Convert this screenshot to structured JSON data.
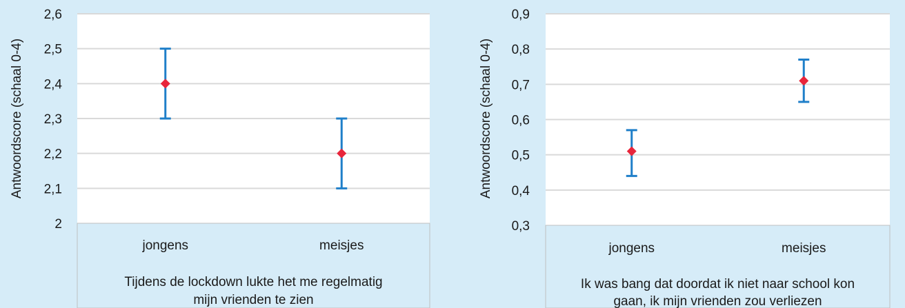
{
  "chart_data": [
    {
      "type": "errorbar",
      "ylabel": "Antwoordscore (schaal 0-4)",
      "xlabel": "Tijdens de lockdown lukte het me regelmatig mijn vrienden te zien",
      "xlabel_lines": [
        "Tijdens de lockdown lukte het me regelmatig",
        "mijn vrienden te zien"
      ],
      "categories": [
        "jongens",
        "meisjes"
      ],
      "values": [
        2.4,
        2.2
      ],
      "lower": [
        2.3,
        2.1
      ],
      "upper": [
        2.5,
        2.3
      ],
      "ylim": [
        2,
        2.6
      ],
      "yticks": [
        "2",
        "2,1",
        "2,2",
        "2,3",
        "2,4",
        "2,5",
        "2,6"
      ],
      "grid": true
    },
    {
      "type": "errorbar",
      "ylabel": "Antwoordscore (schaal 0-4)",
      "xlabel": "Ik was bang dat doordat ik niet naar school kon gaan, ik mijn vrienden zou verliezen",
      "xlabel_lines": [
        "Ik was bang dat doordat ik niet naar school kon",
        "gaan, ik mijn vrienden zou verliezen"
      ],
      "categories": [
        "jongens",
        "meisjes"
      ],
      "values": [
        0.51,
        0.71
      ],
      "lower": [
        0.44,
        0.65
      ],
      "upper": [
        0.57,
        0.77
      ],
      "ylim": [
        0.3,
        0.9
      ],
      "yticks": [
        "0,3",
        "0,4",
        "0,5",
        "0,6",
        "0,7",
        "0,8",
        "0,9"
      ],
      "grid": true
    }
  ],
  "colors": {
    "background": "#d6ecf8",
    "plot_area": "#ffffff",
    "gridline": "#d9d9d9",
    "error_bar": "#1f7fc9",
    "marker": "#e8253b"
  }
}
